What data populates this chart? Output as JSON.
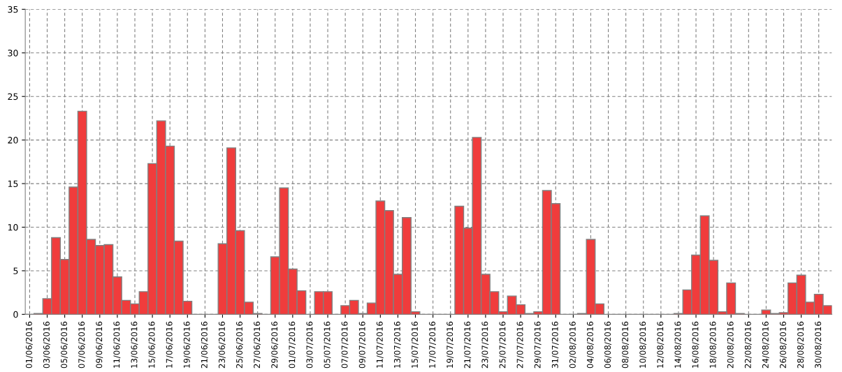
{
  "chart_data": {
    "type": "bar",
    "categories": [
      "01/06/2016",
      null,
      "03/06/2016",
      null,
      "05/06/2016",
      null,
      "07/06/2016",
      null,
      "09/06/2016",
      null,
      "11/06/2016",
      null,
      "13/06/2016",
      null,
      "15/06/2016",
      null,
      "17/06/2016",
      null,
      "19/06/2016",
      null,
      "21/06/2016",
      null,
      "23/06/2016",
      null,
      "25/06/2016",
      null,
      "27/06/2016",
      null,
      "29/06/2016",
      null,
      "01/07/2016",
      null,
      "03/07/2016",
      null,
      "05/07/2016",
      null,
      "07/07/2016",
      null,
      "09/07/2016",
      null,
      "11/07/2016",
      null,
      "13/07/2016",
      null,
      "15/07/2016",
      null,
      "17/07/2016",
      null,
      "19/07/2016",
      null,
      "21/07/2016",
      null,
      "23/07/2016",
      null,
      "25/07/2016",
      null,
      "27/07/2016",
      null,
      "29/07/2016",
      null,
      "31/07/2016",
      null,
      "02/08/2016",
      null,
      "04/08/2016",
      null,
      "06/08/2016",
      null,
      "08/08/2016",
      null,
      "10/08/2016",
      null,
      "12/08/2016",
      null,
      "14/08/2016",
      null,
      "16/08/2016",
      null,
      "18/08/2016",
      null,
      "20/08/2016",
      null,
      "22/08/2016",
      null,
      "24/08/2016",
      null,
      "26/08/2016",
      null,
      "28/08/2016",
      null,
      "30/08/2016",
      null
    ],
    "values": [
      0,
      0.1,
      1.8,
      8.8,
      6.3,
      14.6,
      23.3,
      8.6,
      7.9,
      8.0,
      4.3,
      1.6,
      1.2,
      2.6,
      17.3,
      22.2,
      19.3,
      8.4,
      1.5,
      0,
      0,
      0,
      8.1,
      19.1,
      9.6,
      1.4,
      0.1,
      0,
      6.6,
      14.5,
      5.2,
      2.7,
      0,
      2.6,
      2.6,
      0,
      1.0,
      1.6,
      0.1,
      1.3,
      13.0,
      11.9,
      4.6,
      11.1,
      0.3,
      0,
      0,
      0,
      0,
      12.4,
      9.9,
      20.3,
      4.6,
      2.6,
      0.3,
      2.1,
      1.1,
      0.1,
      0.3,
      14.2,
      12.7,
      0,
      0,
      0.1,
      8.6,
      1.2,
      0,
      0,
      0,
      0,
      0,
      0,
      0,
      0,
      0.1,
      2.8,
      6.8,
      11.3,
      6.2,
      0.3,
      3.6,
      0.1,
      0,
      0,
      0.5,
      0.1,
      0.2,
      3.6,
      4.5,
      1.4,
      2.3,
      1.0
    ],
    "color": "#f03c3c",
    "ylim": [
      0,
      35
    ],
    "yticks": [
      0,
      5,
      10,
      15,
      20,
      25,
      30,
      35
    ],
    "grid": true
  }
}
